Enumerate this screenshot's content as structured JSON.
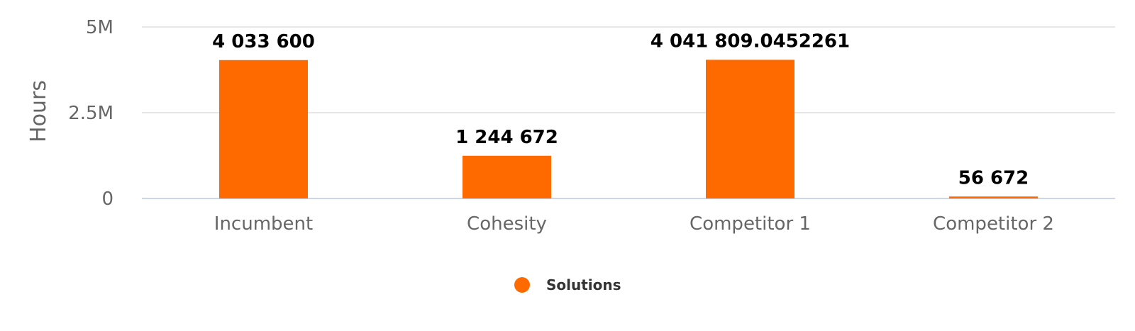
{
  "chart_data": {
    "type": "bar",
    "categories": [
      "Incumbent",
      "Cohesity",
      "Competitor 1",
      "Competitor 2"
    ],
    "series": [
      {
        "name": "Solutions",
        "values": [
          4033600,
          1244672,
          4041809.0452261,
          56672
        ],
        "data_labels": [
          "4 033 600",
          "1 244 672",
          "4 041 809.0452261",
          "56 672"
        ]
      }
    ],
    "ylabel": "Hours",
    "ylim": [
      0,
      5000000
    ],
    "yticks": [
      0,
      2500000,
      5000000
    ],
    "ytick_labels": [
      "0",
      "2.5M",
      "5M"
    ],
    "grid": true,
    "legend_position": "bottom-center",
    "colors": {
      "bar": "#ff6a00"
    }
  }
}
